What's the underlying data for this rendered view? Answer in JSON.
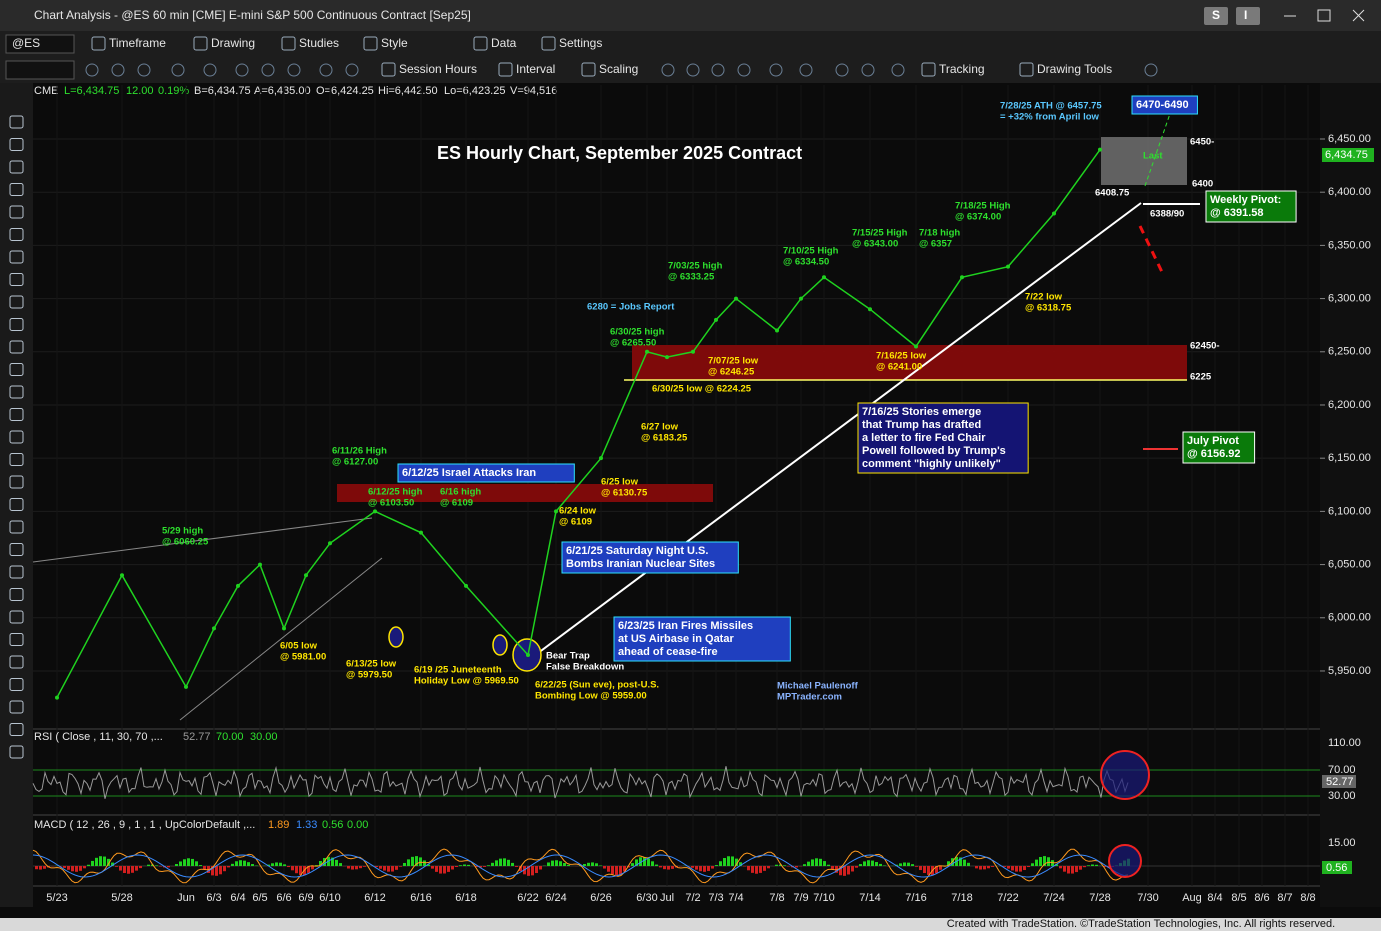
{
  "window": {
    "title": "Chart Analysis - @ES 60 min [CME] E-mini S&P 500 Continuous Contract [Sep25]",
    "buttons": [
      "S",
      "I"
    ]
  },
  "toolbar": {
    "symbol": "@ES",
    "row1": [
      "Timeframe",
      "Drawing",
      "Studies",
      "Style",
      "Data",
      "Settings"
    ],
    "row2": [
      "Session Hours",
      "Interval",
      "Scaling",
      "Tracking",
      "Drawing Tools"
    ]
  },
  "status": {
    "exchange": "CME",
    "fields": [
      "L=6,434.75",
      "12.00",
      "0.19%",
      "B=6,434.75",
      "A=6,435.00",
      "O=6,424.25",
      "Hi=6,442.50",
      "Lo=6,423.25",
      "V=94,516"
    ]
  },
  "chart_data": {
    "type": "line",
    "title": "ES Hourly Chart, September 2025 Contract",
    "color": "#1fd21f",
    "categories": [
      "5/23",
      "5/28",
      "Jun",
      "6/3",
      "6/4",
      "6/5",
      "6/6",
      "6/9",
      "6/10",
      "6/12",
      "6/16",
      "6/18",
      "6/22",
      "6/24",
      "6/26",
      "6/30",
      "Jul",
      "7/2",
      "7/3",
      "7/4",
      "7/8",
      "7/9",
      "7/10",
      "7/14",
      "7/16",
      "7/18",
      "7/22",
      "7/24",
      "7/28",
      "7/30",
      "Aug",
      "8/4",
      "8/5",
      "8/6",
      "8/7",
      "8/8"
    ],
    "values": [
      5925,
      6040,
      5935,
      5990,
      6030,
      6050,
      5990,
      6040,
      6070,
      6100,
      6080,
      6030,
      5965,
      6100,
      6150,
      6250,
      6245,
      6250,
      6280,
      6300,
      6270,
      6300,
      6320,
      6290,
      6255,
      6320,
      6330,
      6380,
      6440,
      null,
      null,
      null,
      null,
      null,
      null,
      null
    ],
    "ylim": [
      5896.4,
      6500.75
    ],
    "yticks": [
      {
        "value": 6450,
        "label": "6,450.00"
      },
      {
        "value": 6400,
        "label": "6,400.00"
      },
      {
        "value": 6350,
        "label": "6,350.00"
      },
      {
        "value": 6300,
        "label": "6,300.00"
      },
      {
        "value": 6250,
        "label": "6,250.00"
      },
      {
        "value": 6200,
        "label": "6,200.00"
      },
      {
        "value": 6150,
        "label": "6,150.00"
      },
      {
        "value": 6100,
        "label": "6,100.00"
      },
      {
        "value": 6050,
        "label": "6,050.00"
      },
      {
        "value": 6000,
        "label": "6,000.00"
      },
      {
        "value": 5950,
        "label": "5,950.00"
      }
    ],
    "grid": true,
    "last_price_label": "6,434.75",
    "annotations": [
      {
        "lines": [
          "7/28/25 ATH @ 6457.75",
          "= +32% from April low"
        ],
        "style": "plain",
        "color": "#5ac8ff"
      },
      {
        "lines": [
          "6470-6490"
        ],
        "style": "blue-box",
        "color": "#ffffff"
      },
      {
        "lines": [
          "6450-"
        ],
        "style": "plain",
        "color": "#ffffff"
      },
      {
        "lines": [
          "6400"
        ],
        "style": "plain",
        "color": "#ffffff"
      },
      {
        "lines": [
          "6408.75"
        ],
        "style": "plain",
        "color": "#ffffff"
      },
      {
        "lines": [
          "Last"
        ],
        "style": "plain",
        "color": "#2ee02e"
      },
      {
        "lines": [
          "Weekly Pivot:",
          "@ 6391.58"
        ],
        "style": "green-box",
        "color": "#ffffff"
      },
      {
        "lines": [
          "6388/90"
        ],
        "style": "plain",
        "color": "#ffffff"
      },
      {
        "lines": [
          "7/18/25 High",
          "@ 6374.00"
        ],
        "style": "plain",
        "color": "#2ee02e"
      },
      {
        "lines": [
          "7/15/25 High",
          "@ 6343.00"
        ],
        "style": "plain",
        "color": "#2ee02e"
      },
      {
        "lines": [
          "7/18 high",
          "@ 6357"
        ],
        "style": "plain",
        "color": "#2ee02e"
      },
      {
        "lines": [
          "7/10/25 High",
          "@ 6334.50"
        ],
        "style": "plain",
        "color": "#2ee02e"
      },
      {
        "lines": [
          "7/03/25 high",
          "@ 6333.25"
        ],
        "style": "plain",
        "color": "#2ee02e"
      },
      {
        "lines": [
          "6280 = Jobs Report"
        ],
        "style": "plain",
        "color": "#5ac8ff"
      },
      {
        "lines": [
          "6/30/25 high",
          "@ 6265.50"
        ],
        "style": "plain",
        "color": "#2ee02e"
      },
      {
        "lines": [
          "7/07/25 low",
          "@ 6246.25"
        ],
        "style": "plain",
        "color": "#ffe600"
      },
      {
        "lines": [
          "7/16/25 low",
          "@ 6241.00"
        ],
        "style": "plain",
        "color": "#ffe600"
      },
      {
        "lines": [
          "6/30/25 low @ 6224.25"
        ],
        "style": "plain",
        "color": "#ffe600"
      },
      {
        "lines": [
          "62450-"
        ],
        "style": "plain",
        "color": "#ffffff"
      },
      {
        "lines": [
          "6225"
        ],
        "style": "plain",
        "color": "#ffffff"
      },
      {
        "lines": [
          "7/22 low",
          "@ 6318.75"
        ],
        "style": "plain",
        "color": "#ffe600"
      },
      {
        "lines": [
          "7/16/25 Stories emerge",
          "that Trump has drafted",
          "a letter to fire Fed Chair",
          "Powell followed by Trump's",
          "comment \"highly unlikely\""
        ],
        "style": "navy-box",
        "color": "#ffffff"
      },
      {
        "lines": [
          "6/27 low",
          "@ 6183.25"
        ],
        "style": "plain",
        "color": "#ffe600"
      },
      {
        "lines": [
          "July Pivot",
          "@ 6156.92"
        ],
        "style": "green-box",
        "color": "#ffffff"
      },
      {
        "lines": [
          "6/12/25 Israel Attacks Iran"
        ],
        "style": "blue-box",
        "color": "#ffffff"
      },
      {
        "lines": [
          "6/11/26 High",
          "@ 6127.00"
        ],
        "style": "plain",
        "color": "#2ee02e"
      },
      {
        "lines": [
          "6/12/25 high",
          "@ 6103.50"
        ],
        "style": "plain",
        "color": "#2ee02e"
      },
      {
        "lines": [
          "6/16 high",
          "@ 6109"
        ],
        "style": "plain",
        "color": "#2ee02e"
      },
      {
        "lines": [
          "6/25 low",
          "@ 6130.75"
        ],
        "style": "plain",
        "color": "#ffe600"
      },
      {
        "lines": [
          "6/24 low",
          "@ 6109"
        ],
        "style": "plain",
        "color": "#ffe600"
      },
      {
        "lines": [
          "5/29 high",
          "@ 6060.25"
        ],
        "style": "plain",
        "color": "#2ee02e"
      },
      {
        "lines": [
          "6/21/25 Saturday Night U.S.",
          "Bombs Iranian Nuclear Sites"
        ],
        "style": "blue-box",
        "color": "#ffffff"
      },
      {
        "lines": [
          "6/23/25 Iran Fires Missiles",
          "at US Airbase in Qatar",
          "ahead of cease-fire"
        ],
        "style": "blue-box",
        "color": "#ffffff"
      },
      {
        "lines": [
          "6/05 low",
          "@ 5981.00"
        ],
        "style": "plain",
        "color": "#ffe600"
      },
      {
        "lines": [
          "6/13/25 low",
          "@ 5979.50"
        ],
        "style": "plain",
        "color": "#ffe600"
      },
      {
        "lines": [
          "6/19 /25 Juneteenth",
          "Holiday Low  @ 5969.50"
        ],
        "style": "plain",
        "color": "#ffe600"
      },
      {
        "lines": [
          "Bear Trap",
          "False Breakdown"
        ],
        "style": "plain",
        "color": "#ffffff"
      },
      {
        "lines": [
          "6/22/25 (Sun eve), post-U.S.",
          "Bombing Low @ 5959.00"
        ],
        "style": "plain",
        "color": "#ffe600"
      },
      {
        "lines": [
          "Michael Paulenoff",
          "MPTrader.com"
        ],
        "style": "plain",
        "color": "#8ab4ff"
      }
    ]
  },
  "rsi": {
    "label": "RSI ( Close , 11, 30, 70 ,...",
    "values": [
      "52.77",
      "70.00",
      "30.00"
    ],
    "last": "52.77",
    "yticks": [
      "110.00",
      "70.00",
      "30.00"
    ]
  },
  "macd": {
    "label": "MACD ( 12 , 26 , 9 , 1 , 1 , UpColorDefault ,...",
    "values": [
      "1.89",
      "1.33",
      "0.56",
      "0.00"
    ],
    "last": "0.56",
    "yticks": [
      "15.00"
    ]
  },
  "footer": "Created with TradeStation. ©TradeStation Technologies, Inc. All rights reserved."
}
